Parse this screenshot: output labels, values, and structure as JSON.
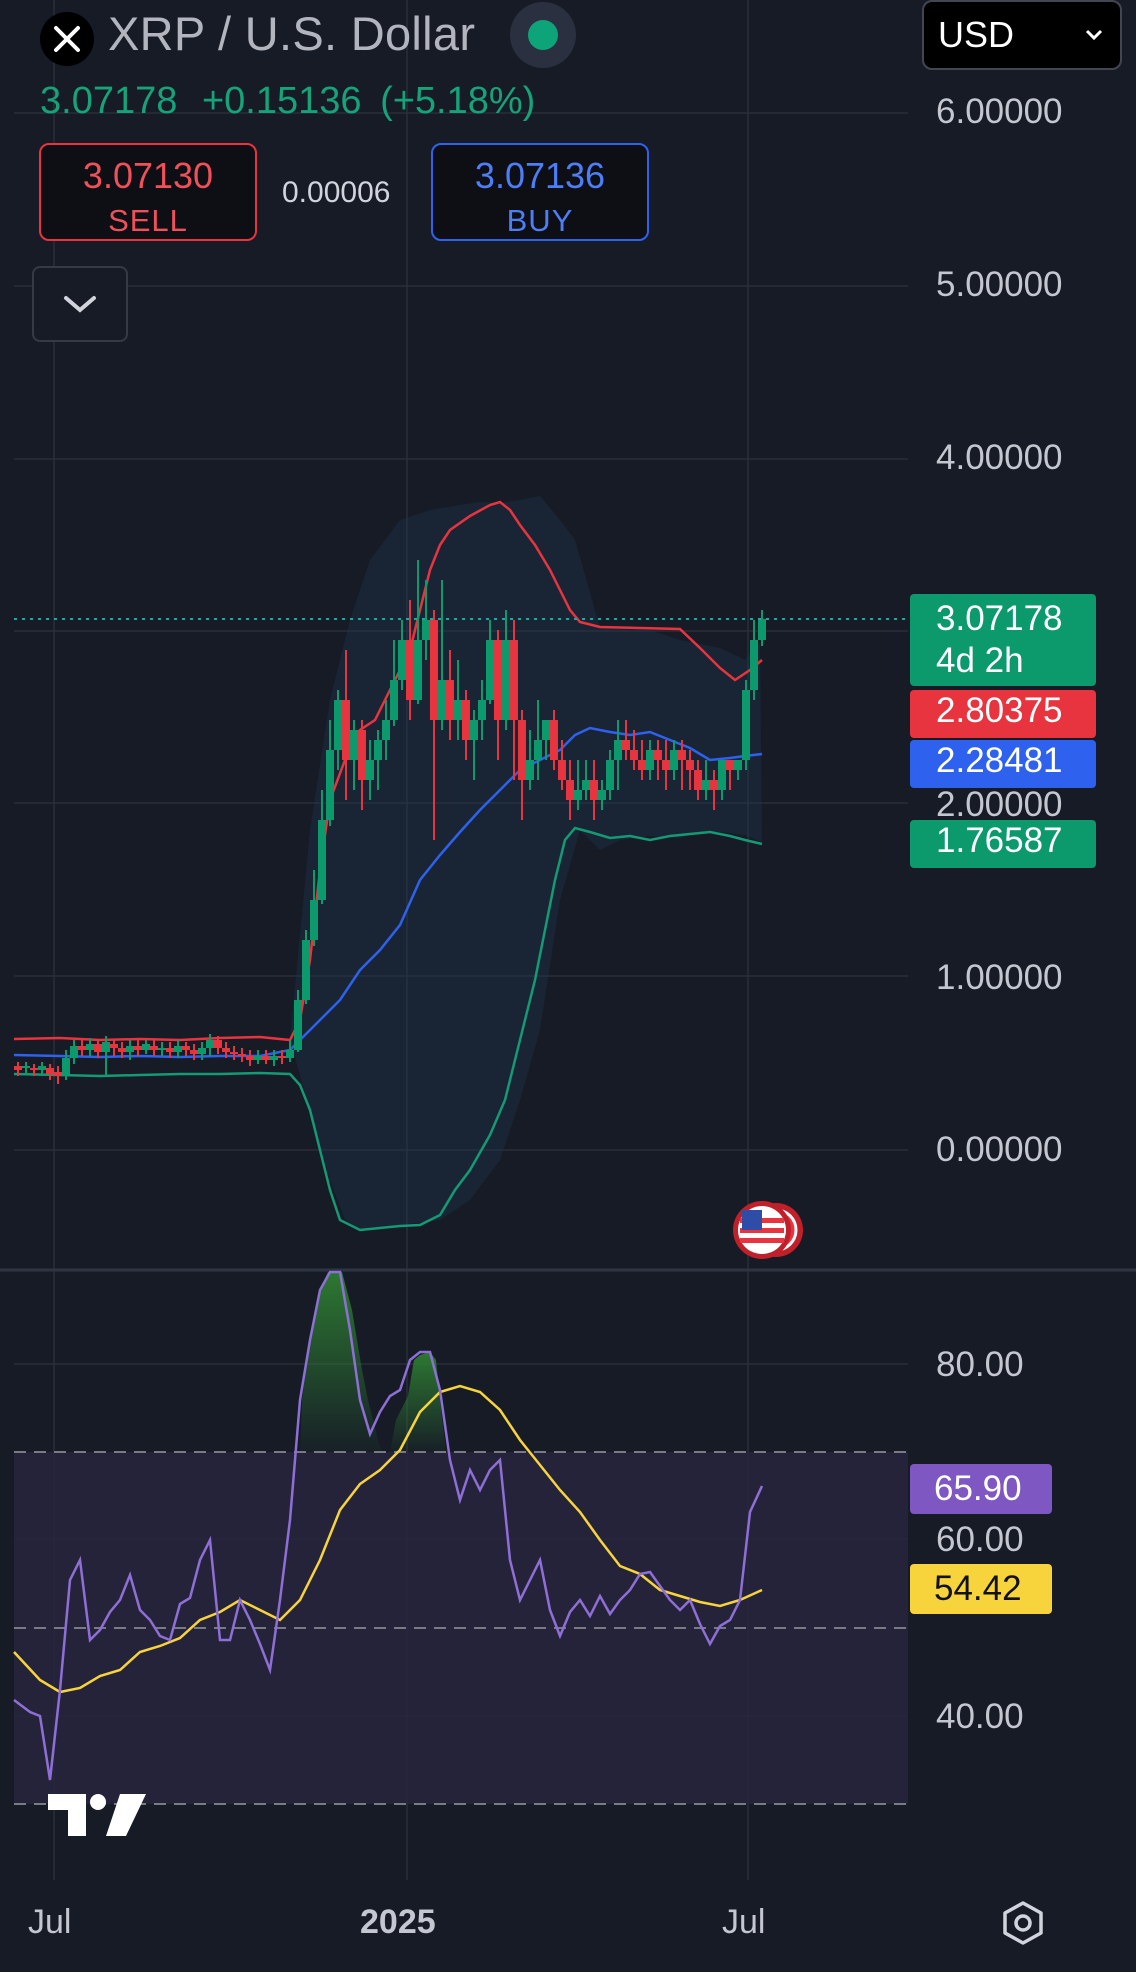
{
  "header": {
    "title": "XRP / U.S. Dollar",
    "currency": "USD",
    "last_price": "3.07178",
    "change": "+0.15136",
    "change_pct": "(+5.18%)",
    "sell_price": "3.07130",
    "sell_label": "SELL",
    "buy_price": "3.07136",
    "buy_label": "BUY",
    "spread": "0.00006"
  },
  "price_axis": [
    "6.00000",
    "5.00000",
    "4.00000",
    "2.00000",
    "1.00000",
    "0.00000"
  ],
  "rsi_axis": [
    "80.00",
    "60.00",
    "40.00"
  ],
  "time_axis": [
    "Jul",
    "2025",
    "Jul"
  ],
  "tags": {
    "last": "3.07178",
    "countdown": "4d 2h",
    "bb_upper": "2.80375",
    "bb_basis": "2.28481",
    "bb_lower": "1.76587",
    "rsi": "65.90",
    "rsi_ma": "54.42"
  },
  "colors": {
    "up": "#0c9a6c",
    "down": "#e8343f",
    "bb_basis": "#2e62ee",
    "rsi_line": "#8e6fd6",
    "rsi_ma": "#f7d43c",
    "background": "#161b26"
  },
  "icons": {
    "close": "close-icon",
    "status": "market-open-dot",
    "dropdown": "chevron-down-icon",
    "collapse": "chevron-down-icon",
    "event": "us-flag-icon",
    "settings": "settings-hexagon-icon",
    "logo": "tradingview-logo"
  }
}
